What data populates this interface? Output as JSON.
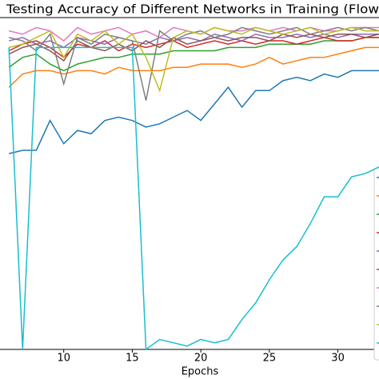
{
  "chart_data": {
    "type": "line",
    "title": "Testing Accuracy of Different Networks in Training (Flow",
    "xlabel": "Epochs",
    "x": [
      6,
      7,
      8,
      9,
      10,
      11,
      12,
      13,
      14,
      15,
      16,
      17,
      18,
      19,
      20,
      21,
      22,
      23,
      24,
      25,
      26,
      27,
      28,
      29,
      30,
      31,
      32,
      33
    ],
    "xlim": [
      5.35,
      33
    ],
    "xticks": [
      5,
      10,
      15,
      20,
      25,
      30
    ],
    "ylim": [
      0,
      100
    ],
    "series": [
      {
        "color": "#1f77b4",
        "values": [
          59,
          60,
          60,
          69,
          62,
          66,
          65,
          69,
          70,
          69,
          67,
          68,
          70,
          72,
          69,
          74,
          79,
          73,
          78,
          78,
          81,
          82,
          81,
          83,
          82,
          84,
          84,
          84
        ]
      },
      {
        "color": "#ff7f0e",
        "values": [
          79,
          83,
          84,
          84,
          83,
          84,
          84,
          83,
          85,
          84,
          84,
          84,
          85,
          85,
          86,
          86,
          86,
          85,
          86,
          88,
          86,
          87,
          88,
          88,
          89,
          90,
          91,
          91
        ]
      },
      {
        "color": "#2ca02c",
        "values": [
          85,
          88,
          89,
          86,
          84,
          86,
          87,
          88,
          88,
          89,
          89,
          89,
          90,
          90,
          90,
          90,
          91,
          91,
          91,
          92,
          92,
          92,
          92,
          93,
          93,
          93,
          94,
          94
        ]
      },
      {
        "color": "#d62728",
        "values": [
          90,
          92,
          93,
          91,
          88,
          92,
          91,
          93,
          90,
          92,
          91,
          92,
          93,
          91,
          92,
          93,
          92,
          93,
          92,
          93,
          93,
          92,
          93,
          94,
          93,
          93,
          94,
          94
        ]
      },
      {
        "color": "#9467bd",
        "values": [
          93,
          94,
          92,
          93,
          91,
          94,
          93,
          92,
          94,
          93,
          92,
          94,
          93,
          94,
          93,
          95,
          94,
          93,
          95,
          94,
          94,
          95,
          94,
          95,
          94,
          95,
          95,
          95
        ]
      },
      {
        "color": "#8c564b",
        "values": [
          89,
          91,
          92,
          90,
          87,
          93,
          91,
          90,
          92,
          90,
          93,
          91,
          94,
          92,
          93,
          94,
          93,
          94,
          94,
          93,
          95,
          94,
          95,
          94,
          95,
          95,
          94,
          95
        ]
      },
      {
        "color": "#e377c2",
        "values": [
          96,
          95,
          97,
          96,
          93,
          97,
          95,
          96,
          97,
          95,
          96,
          94,
          97,
          96,
          95,
          97,
          96,
          96,
          97,
          96,
          97,
          96,
          97,
          96,
          96,
          97,
          97,
          97
        ]
      },
      {
        "color": "#7f7f7f",
        "values": [
          94,
          93,
          90,
          95,
          80,
          94,
          92,
          95,
          94,
          93,
          75,
          96,
          93,
          95,
          96,
          94,
          95,
          97,
          96,
          95,
          96,
          97,
          95,
          96,
          97,
          96,
          97,
          96
        ]
      },
      {
        "color": "#bcbd22",
        "values": [
          91,
          92,
          94,
          96,
          88,
          95,
          93,
          96,
          92,
          95,
          88,
          78,
          94,
          96,
          95,
          97,
          96,
          95,
          97,
          96,
          95,
          96,
          97,
          95,
          96,
          97,
          96,
          96
        ]
      },
      {
        "color": "#17becf",
        "values": [
          91,
          0,
          91,
          91,
          91,
          91,
          91,
          91,
          91,
          91,
          0,
          3,
          2,
          1,
          3,
          2,
          3,
          9,
          14,
          21,
          27,
          31,
          38,
          46,
          46,
          52,
          53,
          55
        ]
      }
    ]
  }
}
